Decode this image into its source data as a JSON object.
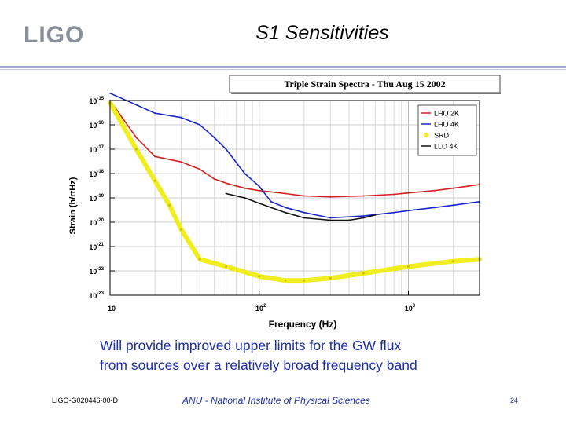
{
  "header": {
    "logo_text": "LIGO",
    "title": "S1 Sensitivities"
  },
  "chart_data": {
    "type": "line",
    "title": "Triple Strain Spectra - Thu Aug 15 2002",
    "xlabel": "Frequency (Hz)",
    "ylabel": "Strain (h/rtHz)",
    "x_scale": "log",
    "y_scale": "log",
    "xlim": [
      10,
      3000
    ],
    "ylim": [
      1e-23,
      1e-15
    ],
    "x_ticks": [
      {
        "value": 10,
        "mantissa": "10",
        "exp": ""
      },
      {
        "value": 100,
        "mantissa": "10",
        "exp": "2"
      },
      {
        "value": 1000,
        "mantissa": "10",
        "exp": "3"
      }
    ],
    "y_ticks": [
      {
        "value": 1e-15,
        "mantissa": "10",
        "exp": "-15"
      },
      {
        "value": 1e-16,
        "mantissa": "10",
        "exp": "-16"
      },
      {
        "value": 1e-17,
        "mantissa": "10",
        "exp": "-17"
      },
      {
        "value": 1e-18,
        "mantissa": "10",
        "exp": "-18"
      },
      {
        "value": 1e-19,
        "mantissa": "10",
        "exp": "-19"
      },
      {
        "value": 1e-20,
        "mantissa": "10",
        "exp": "-20"
      },
      {
        "value": 1e-21,
        "mantissa": "10",
        "exp": "-21"
      },
      {
        "value": 1e-22,
        "mantissa": "10",
        "exp": "-22"
      },
      {
        "value": 1e-23,
        "mantissa": "10",
        "exp": "-23"
      }
    ],
    "grid": true,
    "legend_position": "top-right",
    "series": [
      {
        "name": "LHO 2K",
        "color": "#d42020",
        "points": [
          [
            10,
            1e-15
          ],
          [
            15,
            3e-17
          ],
          [
            20,
            5e-18
          ],
          [
            30,
            3e-18
          ],
          [
            40,
            1.5e-18
          ],
          [
            50,
            6e-19
          ],
          [
            60,
            4e-19
          ],
          [
            80,
            2.5e-19
          ],
          [
            100,
            2e-19
          ],
          [
            150,
            1.5e-19
          ],
          [
            200,
            1.2e-19
          ],
          [
            300,
            1.1e-19
          ],
          [
            500,
            1.2e-19
          ],
          [
            800,
            1.4e-19
          ],
          [
            1000,
            1.6e-19
          ],
          [
            1500,
            2e-19
          ],
          [
            2000,
            2.5e-19
          ],
          [
            3000,
            3.5e-19
          ]
        ]
      },
      {
        "name": "LHO 4K",
        "color": "#1a26c8",
        "points": [
          [
            10,
            2e-15
          ],
          [
            20,
            3e-16
          ],
          [
            30,
            2e-16
          ],
          [
            40,
            1e-16
          ],
          [
            50,
            3e-17
          ],
          [
            60,
            1e-17
          ],
          [
            80,
            1e-18
          ],
          [
            100,
            3e-19
          ],
          [
            120,
            7e-20
          ],
          [
            150,
            4e-20
          ],
          [
            200,
            2.5e-20
          ],
          [
            300,
            1.5e-20
          ],
          [
            500,
            1.8e-20
          ],
          [
            800,
            2.5e-20
          ],
          [
            1000,
            3e-20
          ],
          [
            1500,
            4e-20
          ],
          [
            2000,
            5e-20
          ],
          [
            3000,
            7e-20
          ]
        ]
      },
      {
        "name": "SRD",
        "color": "#f0ee20",
        "points": [
          [
            10,
            8e-16
          ],
          [
            15,
            1e-17
          ],
          [
            20,
            5e-19
          ],
          [
            25,
            5e-20
          ],
          [
            30,
            5e-21
          ],
          [
            40,
            3e-22
          ],
          [
            60,
            1.5e-22
          ],
          [
            100,
            6e-23
          ],
          [
            150,
            4e-23
          ],
          [
            200,
            4e-23
          ],
          [
            300,
            5e-23
          ],
          [
            500,
            8e-23
          ],
          [
            1000,
            1.5e-22
          ],
          [
            2000,
            2.5e-22
          ],
          [
            3000,
            3e-22
          ]
        ]
      },
      {
        "name": "LLO 4K",
        "color": "#111111",
        "points": [
          [
            60,
            1.5e-19
          ],
          [
            80,
            1e-19
          ],
          [
            100,
            6e-20
          ],
          [
            120,
            4e-20
          ],
          [
            150,
            2.5e-20
          ],
          [
            200,
            1.5e-20
          ],
          [
            300,
            1.2e-20
          ],
          [
            400,
            1.2e-20
          ],
          [
            500,
            1.5e-20
          ],
          [
            600,
            2e-20
          ]
        ]
      }
    ]
  },
  "body": {
    "line1": "Will provide improved upper limits for the GW flux",
    "line2": "from sources over a relatively broad frequency band"
  },
  "footer": {
    "doc_id": "LIGO-G020446-00-D",
    "institute": "ANU - National Institute of Physical Sciences",
    "page": "24"
  }
}
